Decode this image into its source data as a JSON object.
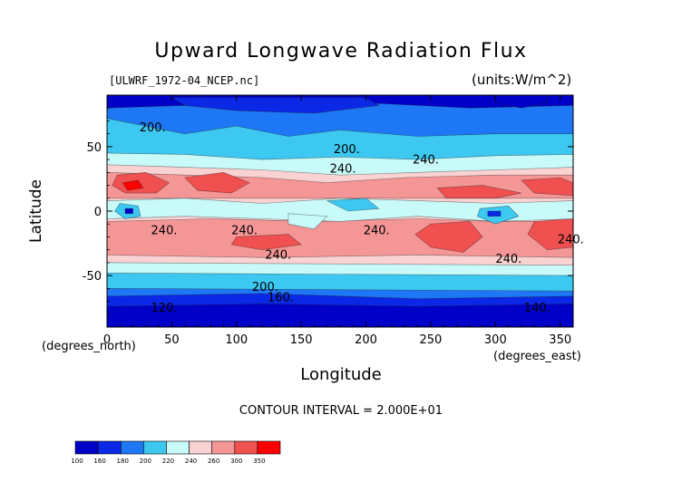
{
  "chart_data": {
    "type": "heatmap",
    "title": "Upward Longwave Radiation Flux",
    "subtitle_left": "[ULWRF_1972-04_NCEP.nc]",
    "subtitle_right": "(units:W/m^2)",
    "xlabel": "Longitude",
    "ylabel": "Latitude",
    "x_unit": "(degrees_east)",
    "y_unit": "(degrees_north)",
    "xlim": [
      0,
      360
    ],
    "ylim": [
      -90,
      90
    ],
    "x_ticks": [
      0,
      50,
      100,
      150,
      200,
      250,
      300,
      350
    ],
    "y_ticks": [
      -50,
      0,
      50
    ],
    "contour_interval_text": "CONTOUR INTERVAL = 2.000E+01",
    "contour_labels": [
      {
        "text": "200.",
        "lon": 25,
        "lat": 62
      },
      {
        "text": "200.",
        "lon": 175,
        "lat": 45
      },
      {
        "text": "240.",
        "lon": 172,
        "lat": 30
      },
      {
        "text": "240.",
        "lon": 236,
        "lat": 37
      },
      {
        "text": "240.",
        "lon": 34,
        "lat": -18
      },
      {
        "text": "240.",
        "lon": 96,
        "lat": -18
      },
      {
        "text": "240.",
        "lon": 198,
        "lat": -18
      },
      {
        "text": "240.",
        "lon": 348,
        "lat": -25
      },
      {
        "text": "240.",
        "lon": 122,
        "lat": -37
      },
      {
        "text": "240.",
        "lon": 300,
        "lat": -40
      },
      {
        "text": "200.",
        "lon": 112,
        "lat": -62
      },
      {
        "text": "160.",
        "lon": 124,
        "lat": -70
      },
      {
        "text": "120.",
        "lon": 34,
        "lat": -78
      },
      {
        "text": "140.",
        "lon": 322,
        "lat": -78
      }
    ],
    "colorbar": {
      "levels": [
        "100",
        "160",
        "180",
        "200",
        "220",
        "240",
        "260",
        "300",
        "350"
      ],
      "colors": [
        "#0000c8",
        "#0a28e6",
        "#1e78f5",
        "#3cc8f0",
        "#c8fafa",
        "#fad2d2",
        "#f59696",
        "#f05050",
        "#ff0000"
      ]
    },
    "field_colors": {
      "c100": "#0000c8",
      "c160": "#0a28e6",
      "c180": "#1e78f5",
      "c200": "#3cc8f0",
      "c220": "#c8fafa",
      "c240": "#fad2d2",
      "c260": "#f59696",
      "c300": "#f05050",
      "c350": "#ff0000"
    }
  }
}
